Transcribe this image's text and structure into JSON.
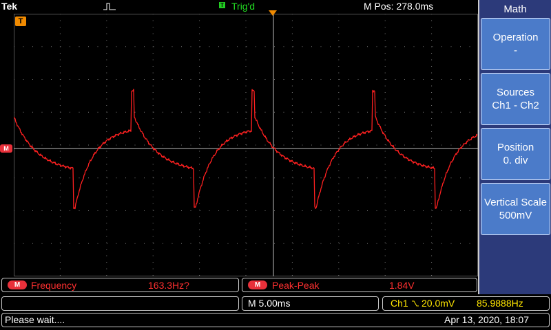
{
  "header": {
    "brand": "Tek",
    "trigger_status": "Trig'd",
    "trigger_icon": "T",
    "m_pos": "M Pos: 278.0ms",
    "pulse_icon": "pulse-icon"
  },
  "markers": {
    "trigger_level": "T",
    "math_channel": "M"
  },
  "menu": {
    "title": "Math",
    "buttons": [
      {
        "label": "Operation",
        "value": "-"
      },
      {
        "label": "Sources",
        "value": "Ch1 - Ch2"
      },
      {
        "label": "Position",
        "value": "0. div"
      },
      {
        "label": "Vertical Scale",
        "value": "500mV"
      }
    ]
  },
  "measurements": [
    {
      "badge": "M",
      "name": "Frequency",
      "value": "163.3Hz?"
    },
    {
      "badge": "M",
      "name": "Peak-Peak",
      "value": "1.84V"
    }
  ],
  "status": {
    "timebase": "M 5.00ms",
    "channel": "Ch1",
    "trigger_level": "20.0mV",
    "trigger_freq": "85.9888Hz",
    "message": "Please wait....",
    "datetime": "Apr 13, 2020, 18:07"
  },
  "colors": {
    "trace": "#ff2020",
    "menu_bg": "#2c3a7a",
    "button_bg": "#4b7bc9",
    "trigger_orange": "#f08a00",
    "trigger_green": "#22dd22"
  }
}
